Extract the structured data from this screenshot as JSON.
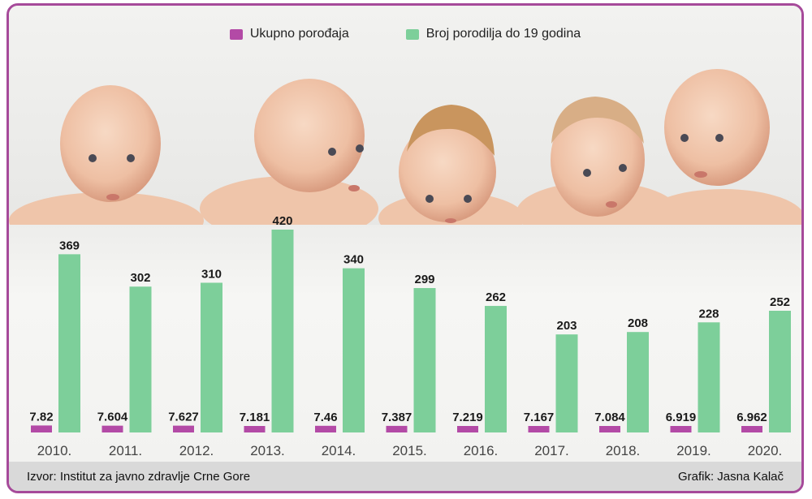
{
  "legend": {
    "series1": "Ukupno porođaja",
    "series2": "Broj porodilja do 19 godina"
  },
  "footer": {
    "source": "Izvor: Institut za javno zdravlje Crne Gore",
    "credit": "Grafik: Jasna Kalač"
  },
  "colors": {
    "series1": "#b34aa6",
    "series2": "#7dcf9a",
    "frame": "#a64a9a"
  },
  "chart_data": {
    "type": "bar",
    "categories": [
      "2010.",
      "2011.",
      "2012.",
      "2013.",
      "2014.",
      "2015.",
      "2016.",
      "2017.",
      "2018.",
      "2019.",
      "2020."
    ],
    "series": [
      {
        "name": "Ukupno porođaja",
        "values": [
          7.82,
          7.604,
          7.627,
          7.181,
          7.46,
          7.387,
          7.219,
          7.167,
          7.084,
          6.919,
          6.962
        ],
        "labels": [
          "7.82",
          "7.604",
          "7.627",
          "7.181",
          "7.46",
          "7.387",
          "7.219",
          "7.167",
          "7.084",
          "6.919",
          "6.962"
        ]
      },
      {
        "name": "Broj porodilja do 19 godina",
        "values": [
          369,
          302,
          310,
          420,
          340,
          299,
          262,
          203,
          208,
          228,
          252
        ],
        "labels": [
          "369",
          "302",
          "310",
          "420",
          "340",
          "299",
          "262",
          "203",
          "208",
          "228",
          "252"
        ]
      }
    ],
    "ylim": [
      0,
      420
    ],
    "grid": false,
    "legend_position": "top-center"
  }
}
